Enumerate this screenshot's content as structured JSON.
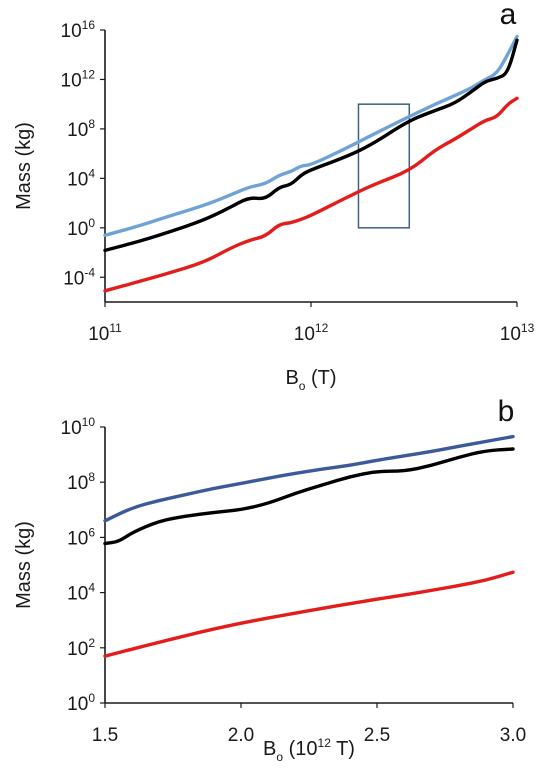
{
  "chart_data": [
    {
      "panel": "a",
      "type": "line",
      "xscale": "log",
      "yscale": "log",
      "xlabel": "B",
      "xlabel_sub": "o",
      "xlabel_suffix": " (T)",
      "ylabel": "Mass (kg)",
      "xlim": [
        100000000000.0,
        10000000000000.0
      ],
      "ylim": [
        1e-06,
        1e+16
      ],
      "x_ticks": [
        {
          "base": "10",
          "exp": "11",
          "value": 100000000000.0
        },
        {
          "base": "10",
          "exp": "12",
          "value": 1000000000000.0
        },
        {
          "base": "10",
          "exp": "13",
          "value": 10000000000000.0
        }
      ],
      "y_ticks": [
        {
          "base": "10",
          "exp": "16",
          "value": 1e+16
        },
        {
          "base": "10",
          "exp": "12",
          "value": 1000000000000.0
        },
        {
          "base": "10",
          "exp": "8",
          "value": 100000000.0
        },
        {
          "base": "10",
          "exp": "4",
          "value": 10000.0
        },
        {
          "base": "10",
          "exp": "0",
          "value": 1.0
        },
        {
          "base": "10",
          "exp": "-4",
          "value": 0.0001
        }
      ],
      "grid": false,
      "legend": "none",
      "inset_box": {
        "x": [
          1700000000000.0,
          3000000000000.0
        ],
        "y": [
          1.0,
          10000000000.0
        ],
        "color": "#3f5f86"
      },
      "series": [
        {
          "color": "#6fa3d6",
          "x": [
            100000000000.0,
            150000000000.0,
            200000000000.0,
            300000000000.0,
            400000000000.0,
            500000000000.0,
            600000000000.0,
            700000000000.0,
            800000000000.0,
            900000000000.0,
            1000000000000.0,
            1500000000000.0,
            2000000000000.0,
            3000000000000.0,
            4000000000000.0,
            5000000000000.0,
            6000000000000.0,
            7000000000000.0,
            8000000000000.0,
            9000000000000.0,
            10000000000000.0
          ],
          "y": [
            0.25,
            1.6,
            8,
            60.0,
            400.0,
            2000.0,
            3500.0,
            18000.0,
            35000.0,
            110000.0,
            120000.0,
            3000000.0,
            35000000.0,
            1000000000.0,
            10000000000.0,
            50000000000.0,
            200000000000.0,
            1000000000000.0,
            3000000000000.0,
            100000000000000.0,
            3000000000000000.0
          ]
        },
        {
          "color": "#000000",
          "x": [
            100000000000.0,
            150000000000.0,
            200000000000.0,
            300000000000.0,
            400000000000.0,
            500000000000.0,
            600000000000.0,
            700000000000.0,
            800000000000.0,
            900000000000.0,
            1000000000000.0,
            1500000000000.0,
            2000000000000.0,
            3000000000000.0,
            4000000000000.0,
            5000000000000.0,
            6000000000000.0,
            7000000000000.0,
            8000000000000.0,
            9000000000000.0,
            10000000000000.0
          ],
          "y": [
            0.015,
            0.09,
            0.4,
            4,
            40.0,
            300.0,
            200.0,
            2000.0,
            3000.0,
            20000.0,
            50000.0,
            600000.0,
            6000000.0,
            500000000.0,
            3000000000.0,
            12000000000.0,
            100000000000.0,
            700000000000.0,
            1200000000000.0,
            3000000000000.0,
            1500000000000000.0
          ]
        },
        {
          "color": "#e31c1c",
          "x": [
            100000000000.0,
            150000000000.0,
            200000000000.0,
            300000000000.0,
            400000000000.0,
            500000000000.0,
            600000000000.0,
            700000000000.0,
            800000000000.0,
            900000000000.0,
            1000000000000.0,
            1500000000000.0,
            2000000000000.0,
            3000000000000.0,
            4000000000000.0,
            5000000000000.0,
            6000000000000.0,
            7000000000000.0,
            8000000000000.0,
            9000000000000.0,
            10000000000000.0
          ],
          "y": [
            8e-06,
            5e-05,
            0.0002,
            0.0015,
            0.02,
            0.1,
            0.2,
            2.0,
            2.5,
            5.0,
            10.0,
            300.0,
            3000.0,
            40000.0,
            2000000.0,
            15000000.0,
            100000000.0,
            500000000.0,
            900000000.0,
            10000000000.0,
            30000000000.0
          ]
        }
      ]
    },
    {
      "panel": "b",
      "type": "line",
      "xscale": "linear",
      "yscale": "log",
      "xlabel": "B",
      "xlabel_sub": "o",
      "xlabel_mid": " (10",
      "xlabel_sup": "12",
      "xlabel_suffix": " T)",
      "ylabel": "Mass (kg)",
      "xlim": [
        1.5,
        3.0
      ],
      "ylim": [
        1.0,
        10000000000.0
      ],
      "x_ticks": [
        {
          "label": "1.5",
          "value": 1.5
        },
        {
          "label": "2.0",
          "value": 2.0
        },
        {
          "label": "2.5",
          "value": 2.5
        },
        {
          "label": "3.0",
          "value": 3.0
        }
      ],
      "y_ticks": [
        {
          "base": "10",
          "exp": "10",
          "value": 10000000000.0
        },
        {
          "base": "10",
          "exp": "8",
          "value": 100000000.0
        },
        {
          "base": "10",
          "exp": "6",
          "value": 1000000.0
        },
        {
          "base": "10",
          "exp": "4",
          "value": 10000.0
        },
        {
          "base": "10",
          "exp": "2",
          "value": 100.0
        },
        {
          "base": "10",
          "exp": "0",
          "value": 1.0
        }
      ],
      "grid": false,
      "legend": "none",
      "series": [
        {
          "color": "#3c5a9a",
          "x": [
            1.5,
            1.6,
            1.7,
            1.8,
            1.9,
            2.0,
            2.1,
            2.2,
            2.3,
            2.4,
            2.5,
            2.6,
            2.7,
            2.8,
            2.9,
            3.0
          ],
          "y": [
            4000000.0,
            12000000.0,
            22000000.0,
            36000000.0,
            60000000.0,
            90000000.0,
            140000000.0,
            210000000.0,
            300000000.0,
            410000000.0,
            620000000.0,
            900000000.0,
            1300000000.0,
            2000000000.0,
            3000000000.0,
            4500000000.0
          ]
        },
        {
          "color": "#000000",
          "x": [
            1.5,
            1.55,
            1.6,
            1.7,
            1.8,
            1.9,
            2.0,
            2.1,
            2.2,
            2.3,
            2.4,
            2.5,
            2.6,
            2.7,
            2.8,
            2.9,
            3.0
          ],
          "y": [
            600000.0,
            700000.0,
            1500000.0,
            4000000.0,
            6000000.0,
            8000000.0,
            10000000.0,
            17000000.0,
            40000000.0,
            80000000.0,
            160000000.0,
            250000000.0,
            250000000.0,
            400000000.0,
            800000000.0,
            1400000000.0,
            1600000000.0
          ]
        },
        {
          "color": "#e31c1c",
          "x": [
            1.5,
            1.6,
            1.7,
            1.8,
            1.9,
            2.0,
            2.1,
            2.2,
            2.3,
            2.4,
            2.5,
            2.6,
            2.7,
            2.8,
            2.9,
            3.0
          ],
          "y": [
            50.0,
            90.0,
            160.0,
            280.0,
            480.0,
            780.0,
            1200.0,
            1800.0,
            2700.0,
            4000.0,
            5800.0,
            8200.0,
            12000.0,
            18000.0,
            28000.0,
            55000.0
          ]
        }
      ]
    }
  ]
}
